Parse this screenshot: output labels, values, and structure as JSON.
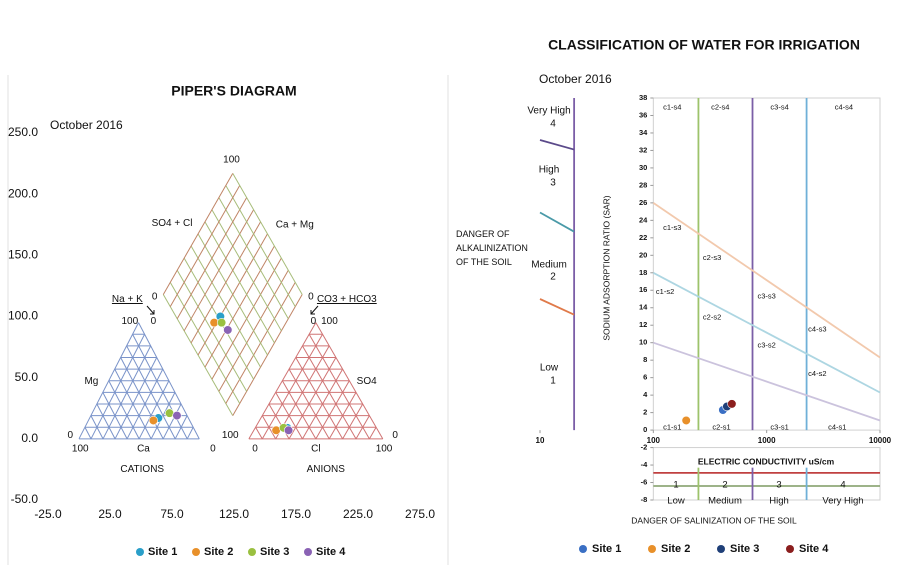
{
  "chart_data": [
    {
      "type": "scatter",
      "title": "PIPER'S DIAGRAM",
      "subtitle": "October 2016",
      "xlim": [
        -25,
        275
      ],
      "xticks": [
        {
          "value": -25,
          "label": "-25.0"
        },
        {
          "value": 25,
          "label": "25.0"
        },
        {
          "value": 75,
          "label": "75.0"
        },
        {
          "value": 125,
          "label": "125.0"
        },
        {
          "value": 175,
          "label": "175.0"
        },
        {
          "value": 225,
          "label": "225.0"
        },
        {
          "value": 275,
          "label": "275.0"
        }
      ],
      "ylim": [
        -50,
        250
      ],
      "yticks": [
        {
          "value": -50,
          "label": "-50.0"
        },
        {
          "value": 0,
          "label": "0.0"
        },
        {
          "value": 50,
          "label": "50.0"
        },
        {
          "value": 100,
          "label": "100.0"
        },
        {
          "value": 150,
          "label": "150.0"
        },
        {
          "value": 200,
          "label": "200.0"
        },
        {
          "value": 250,
          "label": "250.0"
        }
      ],
      "series": [
        {
          "name": "Site 1",
          "color": "#2a9fc9",
          "x": [
            64,
            168,
            114
          ],
          "values": [
            17,
            9,
            100
          ]
        },
        {
          "name": "Site 2",
          "color": "#e8902a",
          "x": [
            60,
            159,
            109
          ],
          "values": [
            15,
            7,
            95
          ]
        },
        {
          "name": "Site 3",
          "color": "#9ac040",
          "x": [
            73,
            165,
            115
          ],
          "values": [
            21,
            9,
            95
          ]
        },
        {
          "name": "Site 4",
          "color": "#8a62b4",
          "x": [
            79,
            169,
            120
          ],
          "values": [
            19,
            7,
            89
          ]
        }
      ],
      "annotations": [
        {
          "text": "100",
          "x": 123,
          "y": 228
        },
        {
          "text": "SO4 + Cl",
          "x": 75,
          "y": 176
        },
        {
          "text": "Ca + Mg",
          "x": 174,
          "y": 175
        },
        {
          "text": "Na + K",
          "x": 39,
          "y": 114,
          "underline": true
        },
        {
          "text": "CO3 + HCO3",
          "x": 216,
          "y": 114,
          "underline": true
        },
        {
          "text": "0",
          "x": 61,
          "y": 116
        },
        {
          "text": "100",
          "x": 41,
          "y": 96
        },
        {
          "text": "0",
          "x": 60,
          "y": 96
        },
        {
          "text": "0",
          "x": 187,
          "y": 116
        },
        {
          "text": "0",
          "x": 189,
          "y": 96
        },
        {
          "text": "100",
          "x": 202,
          "y": 96
        },
        {
          "text": "Mg",
          "x": 10,
          "y": 47
        },
        {
          "text": "SO4",
          "x": 232,
          "y": 47
        },
        {
          "text": "0",
          "x": -7,
          "y": 3
        },
        {
          "text": "100",
          "x": 122,
          "y": 3
        },
        {
          "text": "0",
          "x": 255,
          "y": 3
        },
        {
          "text": "100",
          "x": 1,
          "y": -8
        },
        {
          "text": "Ca",
          "x": 52,
          "y": -8
        },
        {
          "text": "0",
          "x": 108,
          "y": -8
        },
        {
          "text": "0",
          "x": 142,
          "y": -8
        },
        {
          "text": "Cl",
          "x": 191,
          "y": -8
        },
        {
          "text": "100",
          "x": 246,
          "y": -8
        },
        {
          "text": "CATIONS",
          "x": 51,
          "y": -25
        },
        {
          "text": "ANIONS",
          "x": 199,
          "y": -25
        }
      ],
      "legend": "bottom"
    },
    {
      "type": "scatter",
      "title": "CLASSIFICATION OF WATER FOR IRRIGATION",
      "subtitle": "October 2016",
      "xlabel": "ELECTRIC CONDUCTIVITY uS/cm",
      "ylabel": "SODIUM ADSORPTION RATIO (SAR)",
      "xscale": "log",
      "xlim": [
        10,
        10000
      ],
      "xticks": [
        10,
        100,
        1000,
        10000
      ],
      "ylim": [
        -8,
        38
      ],
      "yticks": [
        -8,
        -6,
        -4,
        -2,
        0,
        2,
        4,
        6,
        8,
        10,
        12,
        14,
        16,
        18,
        20,
        22,
        24,
        26,
        28,
        30,
        32,
        34,
        36,
        38
      ],
      "series": [
        {
          "name": "Site 1",
          "color": "#3a6fc4",
          "x": [
            411
          ],
          "values": [
            2.3
          ]
        },
        {
          "name": "Site 2",
          "color": "#e8902a",
          "x": [
            195
          ],
          "values": [
            1.1
          ]
        },
        {
          "name": "Site 3",
          "color": "#1f3f78",
          "x": [
            446
          ],
          "values": [
            2.7
          ]
        },
        {
          "name": "Site 4",
          "color": "#8b1e1e",
          "x": [
            493
          ],
          "values": [
            3.0
          ]
        }
      ],
      "lines": [
        {
          "color": "#7b5ea7",
          "x": [
            20,
            20
          ],
          "y": [
            0,
            38
          ]
        },
        {
          "color": "#9dc36b",
          "x": [
            250,
            250
          ],
          "y": [
            0,
            38
          ]
        },
        {
          "color": "#7b5ea7",
          "x": [
            750,
            750
          ],
          "y": [
            0,
            38
          ]
        },
        {
          "color": "#6fb0d8",
          "x": [
            2250,
            2250
          ],
          "y": [
            0,
            38
          ]
        },
        {
          "color": "#f2c9ad",
          "x": [
            100,
            10000
          ],
          "y": [
            26,
            8.3
          ]
        },
        {
          "color": "#add6e2",
          "x": [
            100,
            10000
          ],
          "y": [
            18,
            4.3
          ]
        },
        {
          "color": "#cbc3dd",
          "x": [
            100,
            10000
          ],
          "y": [
            10,
            1.1
          ]
        },
        {
          "color": "#5b4a8a",
          "x": [
            10,
            20
          ],
          "y": [
            33.2,
            32.1
          ]
        },
        {
          "color": "#4a9aa8",
          "x": [
            10,
            20
          ],
          "y": [
            24.9,
            22.7
          ]
        },
        {
          "color": "#e07a4a",
          "x": [
            10,
            20
          ],
          "y": [
            15,
            13.2
          ]
        },
        {
          "color": "#c04040",
          "x": [
            100,
            10000
          ],
          "y": [
            -4.9,
            -4.9
          ]
        },
        {
          "color": "#8fa878",
          "x": [
            100,
            10000
          ],
          "y": [
            -6.4,
            -6.4
          ]
        },
        {
          "color": "#9dc36b",
          "x": [
            250,
            250
          ],
          "y": [
            -4.3,
            -8
          ]
        },
        {
          "color": "#7b5ea7",
          "x": [
            750,
            750
          ],
          "y": [
            -4.3,
            -8
          ]
        },
        {
          "color": "#6fb0d8",
          "x": [
            2250,
            2250
          ],
          "y": [
            -4.3,
            -8
          ]
        }
      ],
      "annotations": [
        {
          "text": "c1-s4",
          "x": 147,
          "y": 36.9
        },
        {
          "text": "c2-s4",
          "x": 390,
          "y": 36.9
        },
        {
          "text": "c3-s4",
          "x": 1300,
          "y": 36.9
        },
        {
          "text": "c4-s4",
          "x": 4800,
          "y": 36.9
        },
        {
          "text": "c1-s3",
          "x": 147,
          "y": 23.1
        },
        {
          "text": "c2-s3",
          "x": 330,
          "y": 19.7
        },
        {
          "text": "c3-s3",
          "x": 1000,
          "y": 15.3
        },
        {
          "text": "c4-s3",
          "x": 2800,
          "y": 11.5
        },
        {
          "text": "c1-s2",
          "x": 127,
          "y": 15.8
        },
        {
          "text": "c2-s2",
          "x": 330,
          "y": 12.9
        },
        {
          "text": "c3-s2",
          "x": 1000,
          "y": 9.7
        },
        {
          "text": "c4-s2",
          "x": 2800,
          "y": 6.4
        },
        {
          "text": "c1-s1",
          "x": 147,
          "y": 0.3
        },
        {
          "text": "c2-s1",
          "x": 400,
          "y": 0.3
        },
        {
          "text": "c3-s1",
          "x": 1300,
          "y": 0.3
        },
        {
          "text": "c4-s1",
          "x": 4200,
          "y": 0.3
        }
      ],
      "alkalinity_label": "DANGER OF ALKALINIZATION OF THE SOIL",
      "alkalinity_classes": [
        {
          "name": "Very High",
          "level": 4
        },
        {
          "name": "High",
          "level": 3
        },
        {
          "name": "Medium",
          "level": 2
        },
        {
          "name": "Low",
          "level": 1
        }
      ],
      "salinity_label": "DANGER OF SALINIZATION OF THE SOIL",
      "salinity_classes": [
        {
          "level": 1,
          "name": "Low"
        },
        {
          "level": 2,
          "name": "Medium"
        },
        {
          "level": 3,
          "name": "High"
        },
        {
          "level": 4,
          "name": "Very High"
        }
      ],
      "legend": "bottom"
    }
  ]
}
